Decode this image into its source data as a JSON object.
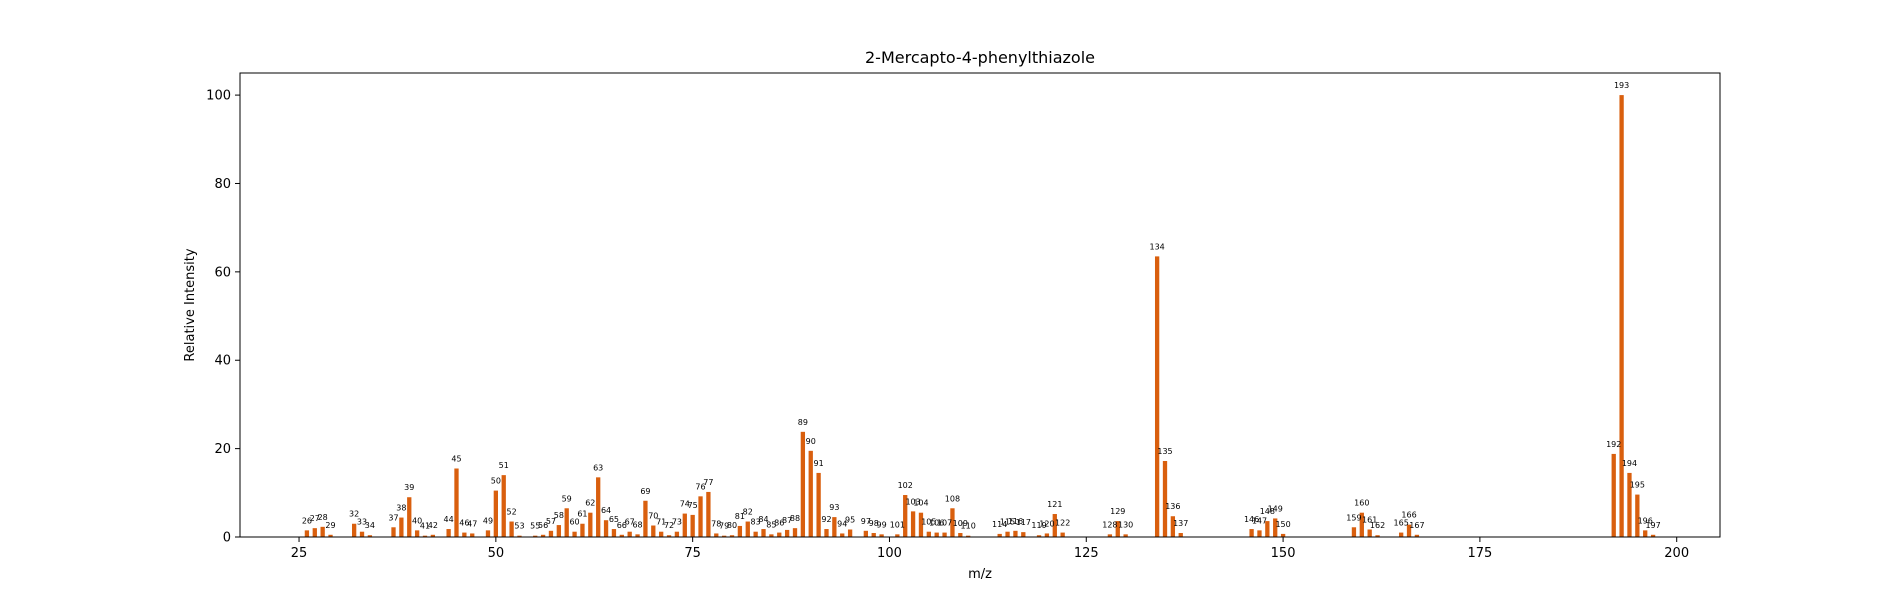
{
  "chart_data": {
    "type": "bar",
    "title": "2-Mercapto-4-phenylthiazole",
    "xlabel": "m/z",
    "ylabel": "Relative Intensity",
    "xlim": [
      17.5,
      205.5
    ],
    "ylim": [
      0,
      105
    ],
    "xticks": [
      25,
      50,
      75,
      100,
      125,
      150,
      175,
      200
    ],
    "yticks": [
      0,
      20,
      40,
      60,
      80,
      100
    ],
    "grid": false,
    "bar_color": "#d95f0e",
    "peaks": [
      {
        "mz": 26,
        "intensity": 1.5,
        "label": "26"
      },
      {
        "mz": 27,
        "intensity": 2.0,
        "label": "27"
      },
      {
        "mz": 28,
        "intensity": 2.3,
        "label": "28"
      },
      {
        "mz": 29,
        "intensity": 0.5,
        "label": "29"
      },
      {
        "mz": 32,
        "intensity": 3.0,
        "label": "32"
      },
      {
        "mz": 33,
        "intensity": 1.2,
        "label": "33"
      },
      {
        "mz": 34,
        "intensity": 0.4,
        "label": "34"
      },
      {
        "mz": 37,
        "intensity": 2.2,
        "label": "37"
      },
      {
        "mz": 38,
        "intensity": 4.4,
        "label": "38"
      },
      {
        "mz": 39,
        "intensity": 9.0,
        "label": "39"
      },
      {
        "mz": 40,
        "intensity": 1.5,
        "label": "40"
      },
      {
        "mz": 41,
        "intensity": 0.3,
        "label": "41"
      },
      {
        "mz": 42,
        "intensity": 0.5,
        "label": "42"
      },
      {
        "mz": 44,
        "intensity": 1.8,
        "label": "44"
      },
      {
        "mz": 45,
        "intensity": 15.5,
        "label": "45"
      },
      {
        "mz": 46,
        "intensity": 1.0,
        "label": "46"
      },
      {
        "mz": 47,
        "intensity": 0.8,
        "label": "47"
      },
      {
        "mz": 49,
        "intensity": 1.5,
        "label": "49"
      },
      {
        "mz": 50,
        "intensity": 10.5,
        "label": "50"
      },
      {
        "mz": 51,
        "intensity": 14.0,
        "label": "51"
      },
      {
        "mz": 52,
        "intensity": 3.5,
        "label": "52"
      },
      {
        "mz": 53,
        "intensity": 0.3,
        "label": "53"
      },
      {
        "mz": 55,
        "intensity": 0.3,
        "label": "55"
      },
      {
        "mz": 56,
        "intensity": 0.5,
        "label": "56"
      },
      {
        "mz": 57,
        "intensity": 1.4,
        "label": "57"
      },
      {
        "mz": 58,
        "intensity": 2.7,
        "label": "58"
      },
      {
        "mz": 59,
        "intensity": 6.5,
        "label": "59"
      },
      {
        "mz": 60,
        "intensity": 1.2,
        "label": "60"
      },
      {
        "mz": 61,
        "intensity": 3.0,
        "label": "61"
      },
      {
        "mz": 62,
        "intensity": 5.5,
        "label": "62"
      },
      {
        "mz": 63,
        "intensity": 13.5,
        "label": "63"
      },
      {
        "mz": 64,
        "intensity": 3.8,
        "label": "64"
      },
      {
        "mz": 65,
        "intensity": 1.8,
        "label": "65"
      },
      {
        "mz": 66,
        "intensity": 0.5,
        "label": "66"
      },
      {
        "mz": 67,
        "intensity": 1.2,
        "label": "67"
      },
      {
        "mz": 68,
        "intensity": 0.6,
        "label": "68"
      },
      {
        "mz": 69,
        "intensity": 8.2,
        "label": "69"
      },
      {
        "mz": 70,
        "intensity": 2.6,
        "label": "70"
      },
      {
        "mz": 71,
        "intensity": 1.2,
        "label": "71"
      },
      {
        "mz": 72,
        "intensity": 0.4,
        "label": "72"
      },
      {
        "mz": 73,
        "intensity": 1.2,
        "label": "73"
      },
      {
        "mz": 74,
        "intensity": 5.3,
        "label": "74"
      },
      {
        "mz": 75,
        "intensity": 5.0,
        "label": "75"
      },
      {
        "mz": 76,
        "intensity": 9.2,
        "label": "76"
      },
      {
        "mz": 77,
        "intensity": 10.2,
        "label": "77"
      },
      {
        "mz": 78,
        "intensity": 0.8,
        "label": "78"
      },
      {
        "mz": 79,
        "intensity": 0.3,
        "label": "79"
      },
      {
        "mz": 80,
        "intensity": 0.4,
        "label": "80"
      },
      {
        "mz": 81,
        "intensity": 2.5,
        "label": "81"
      },
      {
        "mz": 82,
        "intensity": 3.5,
        "label": "82"
      },
      {
        "mz": 83,
        "intensity": 1.2,
        "label": "83"
      },
      {
        "mz": 84,
        "intensity": 1.8,
        "label": "84"
      },
      {
        "mz": 85,
        "intensity": 0.6,
        "label": "85"
      },
      {
        "mz": 86,
        "intensity": 1.0,
        "label": "86"
      },
      {
        "mz": 87,
        "intensity": 1.6,
        "label": "87"
      },
      {
        "mz": 88,
        "intensity": 2.0,
        "label": "88"
      },
      {
        "mz": 89,
        "intensity": 23.8,
        "label": "89"
      },
      {
        "mz": 90,
        "intensity": 19.5,
        "label": "90"
      },
      {
        "mz": 91,
        "intensity": 14.5,
        "label": "91"
      },
      {
        "mz": 92,
        "intensity": 1.8,
        "label": "92"
      },
      {
        "mz": 93,
        "intensity": 4.5,
        "label": "93"
      },
      {
        "mz": 94,
        "intensity": 0.8,
        "label": "94"
      },
      {
        "mz": 95,
        "intensity": 1.7,
        "label": "95"
      },
      {
        "mz": 97,
        "intensity": 1.4,
        "label": "97"
      },
      {
        "mz": 98,
        "intensity": 0.9,
        "label": "98"
      },
      {
        "mz": 99,
        "intensity": 0.6,
        "label": "99"
      },
      {
        "mz": 101,
        "intensity": 0.6,
        "label": "101"
      },
      {
        "mz": 102,
        "intensity": 9.5,
        "label": "102"
      },
      {
        "mz": 103,
        "intensity": 5.8,
        "label": "103"
      },
      {
        "mz": 104,
        "intensity": 5.5,
        "label": "104"
      },
      {
        "mz": 105,
        "intensity": 1.2,
        "label": "105"
      },
      {
        "mz": 106,
        "intensity": 1.0,
        "label": "106"
      },
      {
        "mz": 107,
        "intensity": 1.0,
        "label": "107"
      },
      {
        "mz": 108,
        "intensity": 6.5,
        "label": "108"
      },
      {
        "mz": 109,
        "intensity": 0.9,
        "label": "109"
      },
      {
        "mz": 110,
        "intensity": 0.3,
        "label": "110"
      },
      {
        "mz": 114,
        "intensity": 0.7,
        "label": "114"
      },
      {
        "mz": 115,
        "intensity": 1.2,
        "label": "115"
      },
      {
        "mz": 116,
        "intensity": 1.4,
        "label": "116"
      },
      {
        "mz": 117,
        "intensity": 1.1,
        "label": "117"
      },
      {
        "mz": 119,
        "intensity": 0.4,
        "label": "119"
      },
      {
        "mz": 120,
        "intensity": 0.8,
        "label": "120"
      },
      {
        "mz": 121,
        "intensity": 5.2,
        "label": "121"
      },
      {
        "mz": 122,
        "intensity": 1.0,
        "label": "122"
      },
      {
        "mz": 128,
        "intensity": 0.6,
        "label": "128"
      },
      {
        "mz": 129,
        "intensity": 3.6,
        "label": "129"
      },
      {
        "mz": 130,
        "intensity": 0.6,
        "label": "130"
      },
      {
        "mz": 134,
        "intensity": 63.5,
        "label": "134"
      },
      {
        "mz": 135,
        "intensity": 17.2,
        "label": "135"
      },
      {
        "mz": 136,
        "intensity": 4.7,
        "label": "136"
      },
      {
        "mz": 137,
        "intensity": 0.9,
        "label": "137"
      },
      {
        "mz": 146,
        "intensity": 1.8,
        "label": "146"
      },
      {
        "mz": 147,
        "intensity": 1.5,
        "label": "147"
      },
      {
        "mz": 148,
        "intensity": 3.6,
        "label": "148"
      },
      {
        "mz": 149,
        "intensity": 4.2,
        "label": "149"
      },
      {
        "mz": 150,
        "intensity": 0.7,
        "label": "150"
      },
      {
        "mz": 159,
        "intensity": 2.2,
        "label": "159"
      },
      {
        "mz": 160,
        "intensity": 5.5,
        "label": "160"
      },
      {
        "mz": 161,
        "intensity": 1.7,
        "label": "161"
      },
      {
        "mz": 162,
        "intensity": 0.4,
        "label": "162"
      },
      {
        "mz": 165,
        "intensity": 1.0,
        "label": "165"
      },
      {
        "mz": 166,
        "intensity": 2.8,
        "label": "166"
      },
      {
        "mz": 167,
        "intensity": 0.5,
        "label": "167"
      },
      {
        "mz": 192,
        "intensity": 18.8,
        "label": "192"
      },
      {
        "mz": 193,
        "intensity": 100.0,
        "label": "193"
      },
      {
        "mz": 194,
        "intensity": 14.5,
        "label": "194"
      },
      {
        "mz": 195,
        "intensity": 9.6,
        "label": "195"
      },
      {
        "mz": 196,
        "intensity": 1.5,
        "label": "196"
      },
      {
        "mz": 197,
        "intensity": 0.5,
        "label": "197"
      }
    ]
  }
}
